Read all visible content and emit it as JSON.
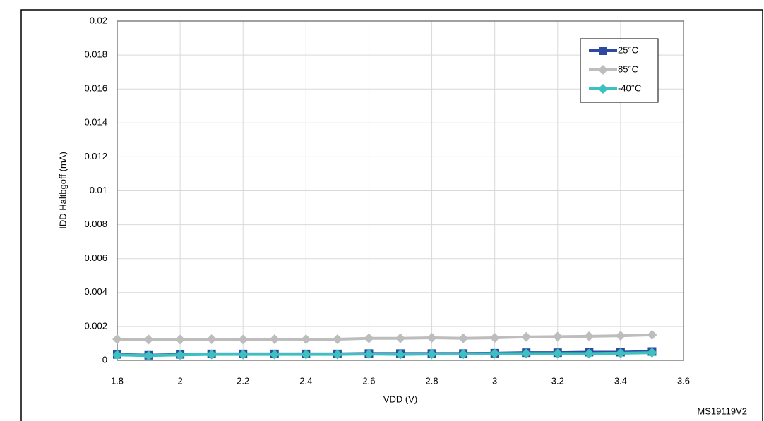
{
  "chart_data": {
    "type": "line",
    "x_label": "VDD (V)",
    "y_label": "IDD Haltbgoff (mA)",
    "note": "MS19119V2",
    "x": [
      1.8,
      1.9,
      2.0,
      2.1,
      2.2,
      2.3,
      2.4,
      2.5,
      2.6,
      2.7,
      2.8,
      2.9,
      3.0,
      3.1,
      3.2,
      3.3,
      3.4,
      3.5
    ],
    "series": [
      {
        "name": "25°C",
        "color": "#2e4a9e",
        "marker": "square",
        "values": [
          0.00035,
          0.0003,
          0.00035,
          0.00038,
          0.00038,
          0.00038,
          0.00038,
          0.00038,
          0.0004,
          0.0004,
          0.0004,
          0.0004,
          0.00042,
          0.00045,
          0.00045,
          0.00048,
          0.00048,
          0.00052
        ]
      },
      {
        "name": "85°C",
        "color": "#bdbdbd",
        "marker": "diamond",
        "values": [
          0.00125,
          0.00123,
          0.00123,
          0.00125,
          0.00123,
          0.00125,
          0.00125,
          0.00125,
          0.0013,
          0.0013,
          0.00133,
          0.0013,
          0.00133,
          0.00138,
          0.0014,
          0.00142,
          0.00145,
          0.0015
        ]
      },
      {
        "name": "-40°C",
        "color": "#3cc0c0",
        "marker": "diamond",
        "values": [
          0.00032,
          0.00028,
          0.00032,
          0.00035,
          0.00035,
          0.00035,
          0.00035,
          0.00035,
          0.00037,
          0.00035,
          0.00037,
          0.00037,
          0.0004,
          0.0004,
          0.0004,
          0.0004,
          0.00042,
          0.00045
        ]
      }
    ],
    "xlim": [
      1.8,
      3.6
    ],
    "xticks": [
      1.8,
      2,
      2.2,
      2.4,
      2.6,
      2.8,
      3,
      3.2,
      3.4,
      3.6
    ],
    "ylim": [
      0,
      0.02
    ],
    "yticks": [
      0,
      0.002,
      0.004,
      0.006,
      0.008,
      0.01,
      0.012,
      0.014,
      0.016,
      0.018,
      0.02
    ],
    "grid": true,
    "legend": "upper right"
  }
}
